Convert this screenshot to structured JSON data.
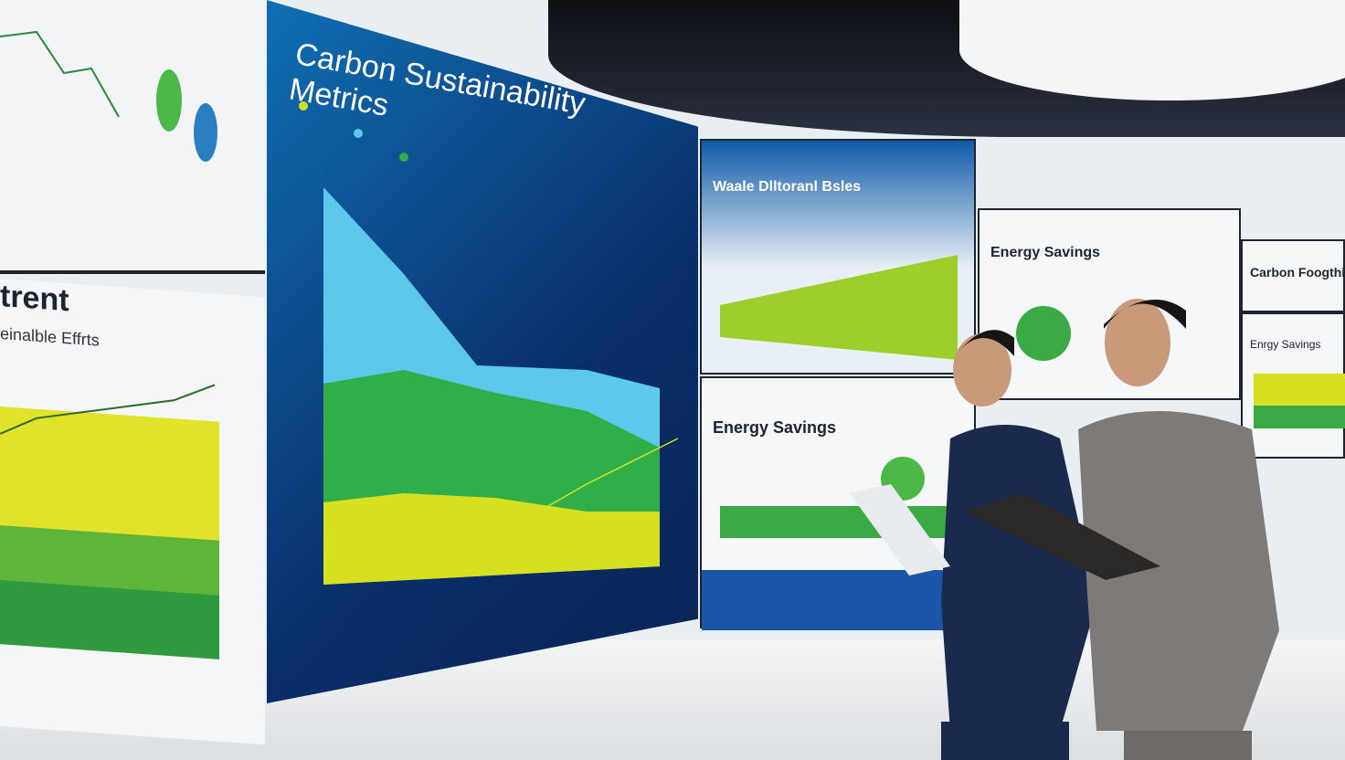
{
  "main_screen": {
    "title": "Carbon Sustainability Metrics"
  },
  "left_screen": {
    "heading": "trent",
    "subheading": "einalble Effrts"
  },
  "panels": [
    {
      "title": "Waale Dlltoranl Bsles"
    },
    {
      "title": "Energy Savings"
    },
    {
      "title": "Carbon Foogthi"
    },
    {
      "title": "Energy Savings"
    },
    {
      "title": "Enrgy Savings"
    }
  ],
  "colors": {
    "screen_blue": "#0a2e6a",
    "chart_yellow": "#d6e021",
    "chart_green": "#2fae4a",
    "chart_cyan": "#5cc8ea"
  }
}
